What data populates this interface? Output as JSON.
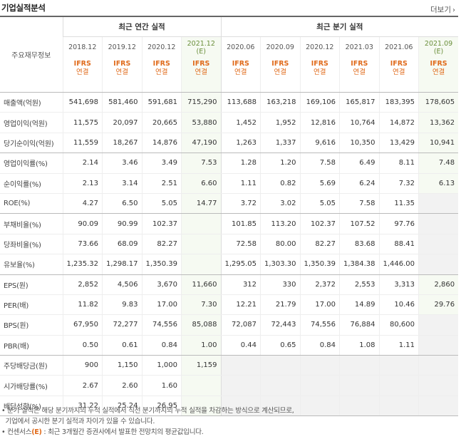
{
  "title": "기업실적분석",
  "more_label": "더보기",
  "row_header": "주요재무정보",
  "annual_group": "최근 연간 실적",
  "quarter_group": "최근 분기 실적",
  "periods": [
    "2018.12",
    "2019.12",
    "2020.12",
    "2021.12",
    "2020.06",
    "2020.09",
    "2020.12",
    "2021.03",
    "2021.06",
    "2021.09"
  ],
  "forecast_marker": "(E)",
  "ifrs_top": "IFRS",
  "ifrs_bottom": "연결",
  "rows": [
    {
      "label": "매출액(억원)",
      "values": [
        "541,698",
        "581,460",
        "591,681",
        "715,290",
        "113,688",
        "163,218",
        "169,106",
        "165,817",
        "183,395",
        "178,605"
      ]
    },
    {
      "label": "영업이익(억원)",
      "values": [
        "11,575",
        "20,097",
        "20,665",
        "53,880",
        "1,452",
        "1,952",
        "12,816",
        "10,764",
        "14,872",
        "13,362"
      ]
    },
    {
      "label": "당기순이익(억원)",
      "values": [
        "11,559",
        "18,267",
        "14,876",
        "47,190",
        "1,263",
        "1,337",
        "9,616",
        "10,350",
        "13,429",
        "10,941"
      ]
    },
    {
      "label": "영업이익률(%)",
      "values": [
        "2.14",
        "3.46",
        "3.49",
        "7.53",
        "1.28",
        "1.20",
        "7.58",
        "6.49",
        "8.11",
        "7.48"
      ]
    },
    {
      "label": "순이익률(%)",
      "values": [
        "2.13",
        "3.14",
        "2.51",
        "6.60",
        "1.11",
        "0.82",
        "5.69",
        "6.24",
        "7.32",
        "6.13"
      ]
    },
    {
      "label": "ROE(%)",
      "values": [
        "4.27",
        "6.50",
        "5.05",
        "14.77",
        "3.72",
        "3.02",
        "5.05",
        "7.58",
        "11.35",
        ""
      ]
    },
    {
      "label": "부채비율(%)",
      "values": [
        "90.09",
        "90.99",
        "102.37",
        "",
        "101.85",
        "113.20",
        "102.37",
        "107.52",
        "97.76",
        ""
      ]
    },
    {
      "label": "당좌비율(%)",
      "values": [
        "73.66",
        "68.09",
        "82.27",
        "",
        "72.58",
        "80.00",
        "82.27",
        "83.68",
        "88.41",
        ""
      ]
    },
    {
      "label": "유보율(%)",
      "values": [
        "1,235.32",
        "1,298.17",
        "1,350.39",
        "",
        "1,295.05",
        "1,303.30",
        "1,350.39",
        "1,384.38",
        "1,446.00",
        ""
      ]
    },
    {
      "label": "EPS(원)",
      "values": [
        "2,852",
        "4,506",
        "3,670",
        "11,660",
        "312",
        "330",
        "2,372",
        "2,553",
        "3,313",
        "2,860"
      ]
    },
    {
      "label": "PER(배)",
      "values": [
        "11.82",
        "9.83",
        "17.00",
        "7.30",
        "12.21",
        "21.79",
        "17.00",
        "14.89",
        "10.46",
        "29.76"
      ]
    },
    {
      "label": "BPS(원)",
      "values": [
        "67,950",
        "72,277",
        "74,556",
        "85,088",
        "72,087",
        "72,443",
        "74,556",
        "76,884",
        "80,600",
        ""
      ]
    },
    {
      "label": "PBR(배)",
      "values": [
        "0.50",
        "0.61",
        "0.84",
        "1.00",
        "0.44",
        "0.65",
        "0.84",
        "1.08",
        "1.11",
        ""
      ]
    },
    {
      "label": "주당배당금(원)",
      "values": [
        "900",
        "1,150",
        "1,000",
        "1,159",
        "",
        "",
        "",
        "",
        "",
        ""
      ]
    },
    {
      "label": "시가배당률(%)",
      "values": [
        "2.67",
        "2.60",
        "1.60",
        "",
        "",
        "",
        "",
        "",
        "",
        ""
      ]
    },
    {
      "label": "배당성향(%)",
      "values": [
        "31.22",
        "25.24",
        "26.95",
        "",
        "",
        "",
        "",
        "",
        "",
        ""
      ]
    }
  ],
  "notes": {
    "line1": "분기 실적은 해당 분기까지의 누적 실적에서 직전 분기까지의 누적 실적을 차감하는 방식으로 계산되므로,",
    "line2": "기업에서 공시한 분기 실적과 차이가 있을 수 있습니다.",
    "line3_pre": "컨센서스",
    "line3_em": "(E)",
    "line3_post": ": 최근 3개월간 증권사에서 발표한 전망치의 평균값입니다."
  },
  "colors": {
    "accent": "#e06b1c",
    "forecast_bg": "#f6faf2",
    "forecast_text": "#6a8f3b",
    "na_bg": "#f2f2f2"
  }
}
